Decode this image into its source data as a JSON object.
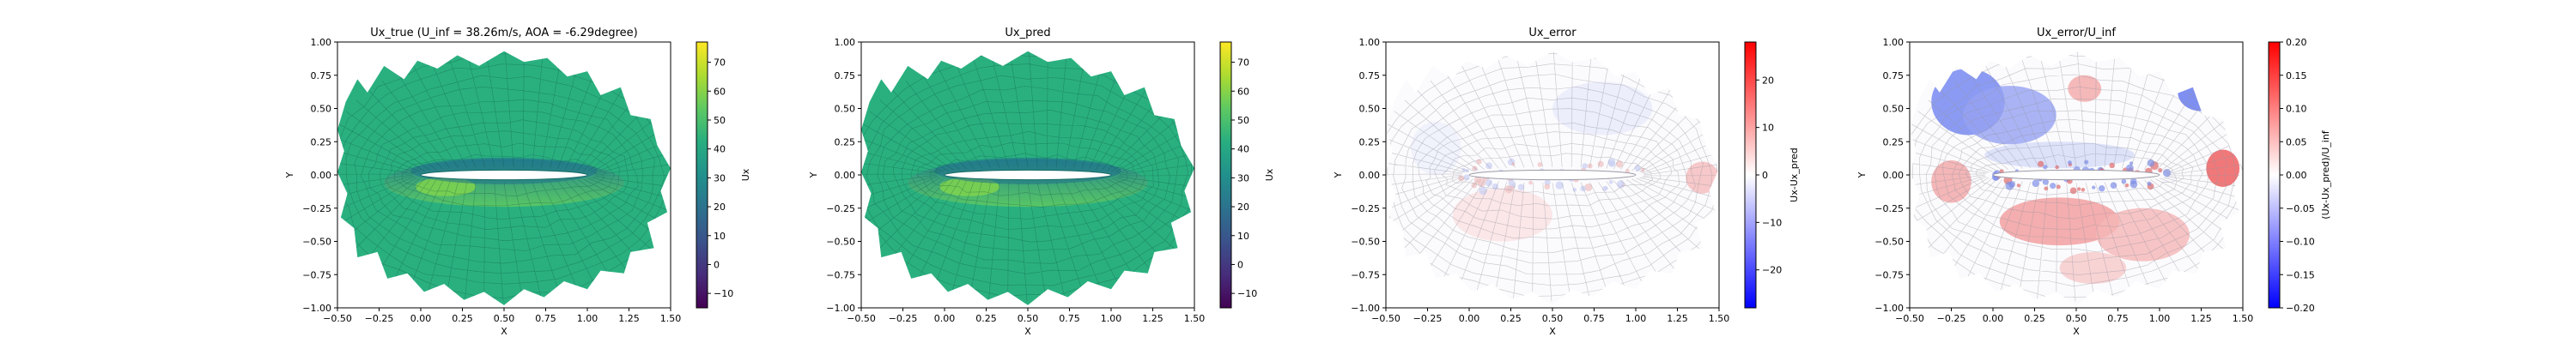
{
  "chart_data": [
    {
      "type": "heatmap",
      "title": "Ux_true (U_inf = 38.26m/s, AOA = -6.29degree)",
      "xlabel": "X",
      "ylabel": "Y",
      "xlim": [
        -0.5,
        1.5
      ],
      "ylim": [
        -1.0,
        1.0
      ],
      "x_ticks": [
        "−0.50",
        "−0.25",
        "0.00",
        "0.25",
        "0.50",
        "0.75",
        "1.00",
        "1.25",
        "1.50"
      ],
      "y_ticks": [
        "−1.00",
        "−0.75",
        "−0.50",
        "−0.25",
        "0.00",
        "0.25",
        "0.50",
        "0.75",
        "1.00"
      ],
      "colorbar": {
        "label": "Ux",
        "colormap": "viridis",
        "range": [
          -15,
          77
        ],
        "ticks": [
          "−10",
          "0",
          "10",
          "20",
          "30",
          "40",
          "50",
          "60",
          "70"
        ]
      },
      "field_value_typical": 38
    },
    {
      "type": "heatmap",
      "title": "Ux_pred",
      "xlabel": "X",
      "ylabel": "Y",
      "xlim": [
        -0.5,
        1.5
      ],
      "ylim": [
        -1.0,
        1.0
      ],
      "x_ticks": [
        "−0.50",
        "−0.25",
        "0.00",
        "0.25",
        "0.50",
        "0.75",
        "1.00",
        "1.25",
        "1.50"
      ],
      "y_ticks": [
        "−1.00",
        "−0.75",
        "−0.50",
        "−0.25",
        "0.00",
        "0.25",
        "0.50",
        "0.75",
        "1.00"
      ],
      "colorbar": {
        "label": "Ux",
        "colormap": "viridis",
        "range": [
          -15,
          77
        ],
        "ticks": [
          "−10",
          "0",
          "10",
          "20",
          "30",
          "40",
          "50",
          "60",
          "70"
        ]
      },
      "field_value_typical": 38
    },
    {
      "type": "heatmap",
      "title": "Ux_error",
      "xlabel": "X",
      "ylabel": "Y",
      "xlim": [
        -0.5,
        1.5
      ],
      "ylim": [
        -1.0,
        1.0
      ],
      "x_ticks": [
        "−0.50",
        "−0.25",
        "0.00",
        "0.25",
        "0.50",
        "0.75",
        "1.00",
        "1.25",
        "1.50"
      ],
      "y_ticks": [
        "−1.00",
        "−0.75",
        "−0.50",
        "−0.25",
        "0.00",
        "0.25",
        "0.50",
        "0.75",
        "1.00"
      ],
      "colorbar": {
        "label": "Ux-Ux_pred",
        "colormap": "bwr",
        "range": [
          -28,
          28
        ],
        "ticks": [
          "−20",
          "−10",
          "0",
          "10",
          "20"
        ]
      }
    },
    {
      "type": "heatmap",
      "title": "Ux_error/U_inf",
      "xlabel": "X",
      "ylabel": "Y",
      "xlim": [
        -0.5,
        1.5
      ],
      "ylim": [
        -1.0,
        1.0
      ],
      "x_ticks": [
        "−0.50",
        "−0.25",
        "0.00",
        "0.25",
        "0.50",
        "0.75",
        "1.00",
        "1.25",
        "1.50"
      ],
      "y_ticks": [
        "−1.00",
        "−0.75",
        "−0.50",
        "−0.25",
        "0.00",
        "0.25",
        "0.50",
        "0.75",
        "1.00"
      ],
      "colorbar": {
        "label": "(Ux-Ux_pred)/U_inf",
        "colormap": "bwr",
        "range": [
          -0.2,
          0.2
        ],
        "ticks": [
          "−0.20",
          "−0.15",
          "−0.10",
          "−0.05",
          "0.00",
          "0.05",
          "0.10",
          "0.15",
          "0.20"
        ]
      }
    }
  ]
}
